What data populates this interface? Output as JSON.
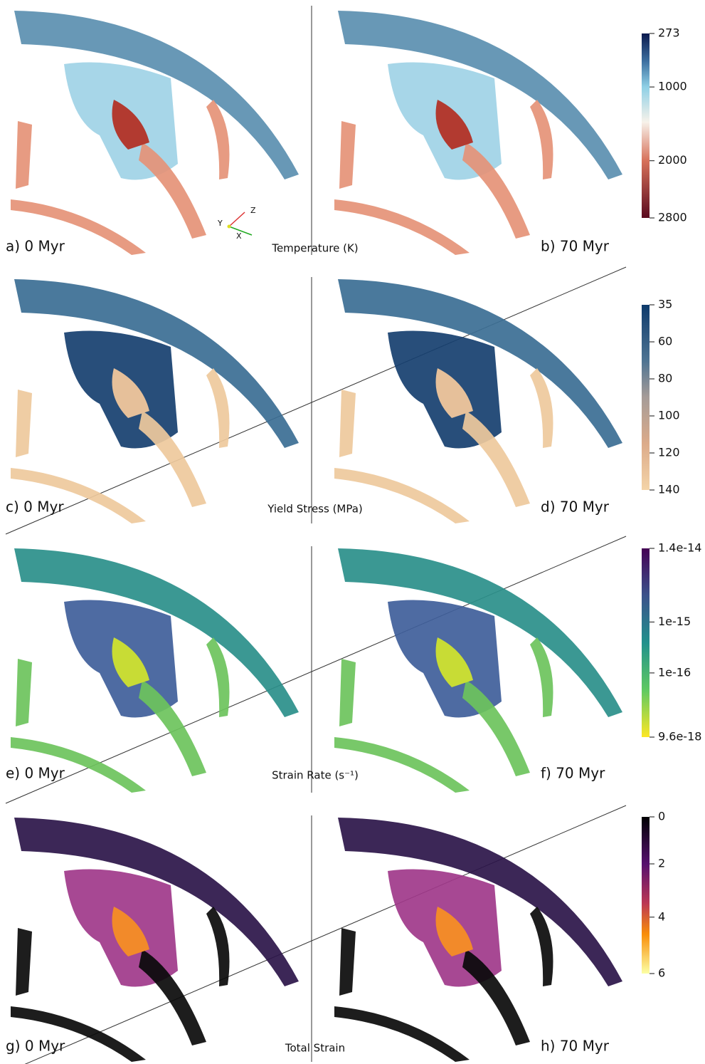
{
  "panels": [
    {
      "left_label": "a) 0 Myr",
      "right_label": "b) 70 Myr",
      "colorbar": {
        "title": "Temperature (K)",
        "ticks": [
          "273",
          "1000",
          "2000",
          "2800"
        ]
      }
    },
    {
      "left_label": "c) 0 Myr",
      "right_label": "d) 70 Myr",
      "colorbar": {
        "title": "Yield Stress (MPa)",
        "ticks": [
          "35",
          "60",
          "80",
          "100",
          "120",
          "140"
        ]
      }
    },
    {
      "left_label": "e) 0 Myr",
      "right_label": "f) 70 Myr",
      "colorbar": {
        "title": "Strain Rate (s⁻¹)",
        "ticks": [
          "1.4e-14",
          "1e-15",
          "1e-16",
          "9.6e-18"
        ]
      }
    },
    {
      "left_label": "g) 0 Myr",
      "right_label": "h) 70 Myr",
      "colorbar": {
        "title": "Total Strain",
        "ticks": [
          "0",
          "2",
          "4",
          "6"
        ]
      }
    }
  ],
  "axes": {
    "x": "X",
    "y": "Y",
    "z": "Z"
  }
}
